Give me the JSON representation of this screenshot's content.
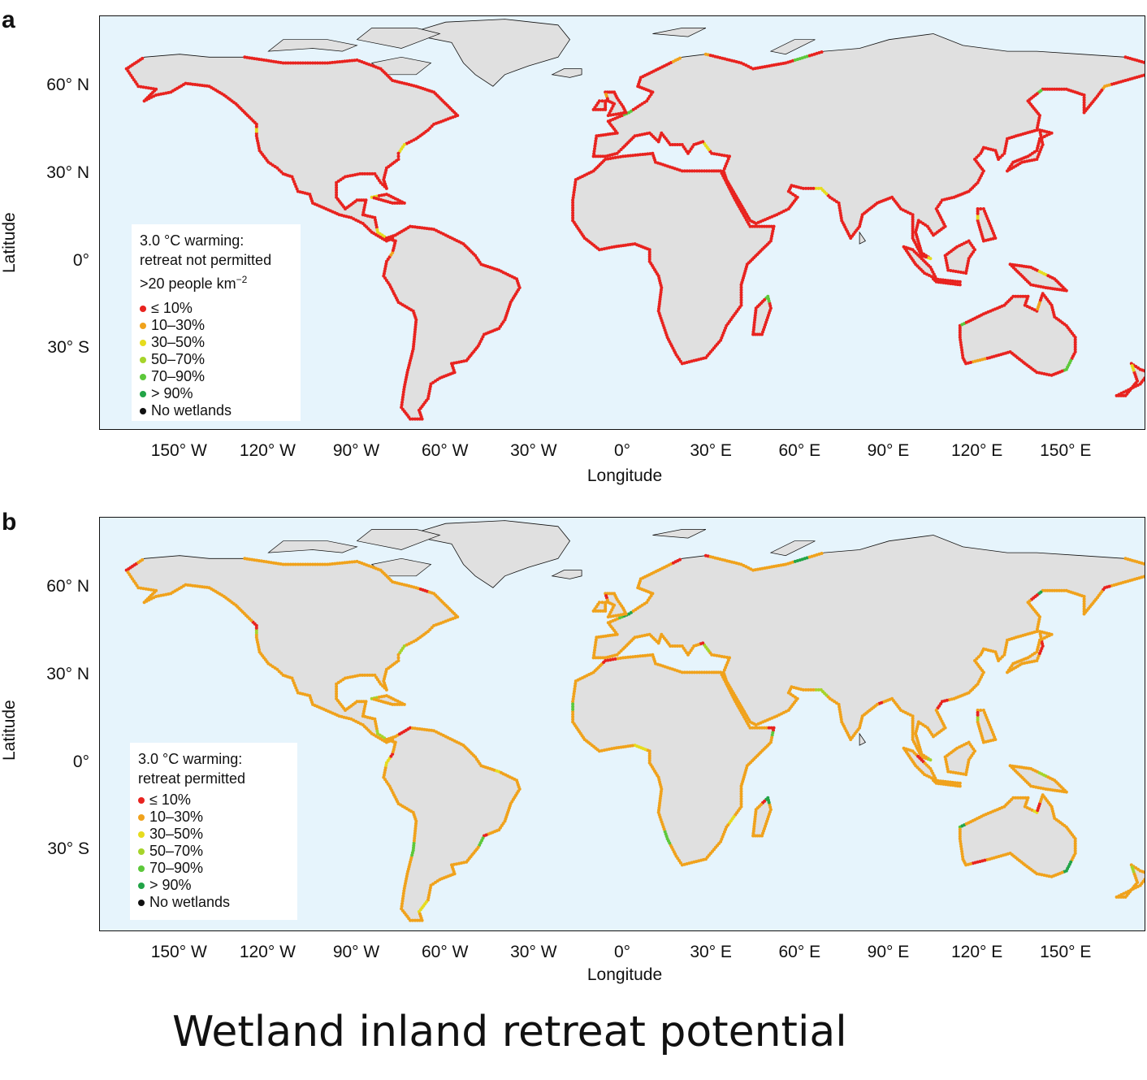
{
  "title": "Wetland inland retreat potential",
  "x_axis": {
    "label": "Longitude",
    "ticks": [
      "150° W",
      "120° W",
      "90° W",
      "60° W",
      "30° W",
      "0°",
      "30° E",
      "60° E",
      "90° E",
      "120° E",
      "150° E"
    ],
    "tick_values": [
      -150,
      -120,
      -90,
      -60,
      -30,
      0,
      30,
      60,
      90,
      120,
      150
    ],
    "range": [
      -177,
      177
    ]
  },
  "y_axis": {
    "label": "Latitude",
    "ticks": [
      "60° N",
      "30° N",
      "0°",
      "30° S"
    ],
    "tick_values": [
      60,
      30,
      0,
      -30
    ],
    "range": [
      -58,
      84
    ]
  },
  "colors": {
    "ocean": "#e6f4fc",
    "land": "#e0e0e0",
    "outline": "#111111",
    "le10": "#e8231f",
    "10_30": "#f0a21c",
    "30_50": "#e6dc1e",
    "50_70": "#a6d42a",
    "70_90": "#5cc83a",
    "gt90": "#22a447",
    "none": "#111111"
  },
  "legend_classes": [
    {
      "label": "≤ 10%",
      "color_key": "le10"
    },
    {
      "label": "10–30%",
      "color_key": "10_30"
    },
    {
      "label": "30–50%",
      "color_key": "30_50"
    },
    {
      "label": "50–70%",
      "color_key": "50_70"
    },
    {
      "label": "70–90%",
      "color_key": "70_90"
    },
    {
      "label": "> 90%",
      "color_key": "gt90"
    },
    {
      "label": "No wetlands",
      "color_key": "none"
    }
  ],
  "panels": [
    {
      "letter": "a",
      "legend_title_lines": [
        "3.0 °C warming:",
        "retreat not permitted"
      ],
      "legend_density": ">20 people km",
      "legend_density_sup": "−2",
      "coast_class_default": "le10",
      "coast_class_mix": [
        "le10",
        "le10",
        "le10",
        "le10",
        "10_30",
        "le10",
        "30_50",
        "le10",
        "le10",
        "70_90"
      ]
    },
    {
      "letter": "b",
      "legend_title_lines": [
        "3.0 °C warming:",
        "retreat permitted"
      ],
      "legend_density": "",
      "legend_density_sup": "",
      "coast_class_default": "10_30",
      "coast_class_mix": [
        "le10",
        "10_30",
        "10_30",
        "30_50",
        "le10",
        "10_30",
        "50_70",
        "le10",
        "70_90",
        "gt90"
      ]
    }
  ]
}
